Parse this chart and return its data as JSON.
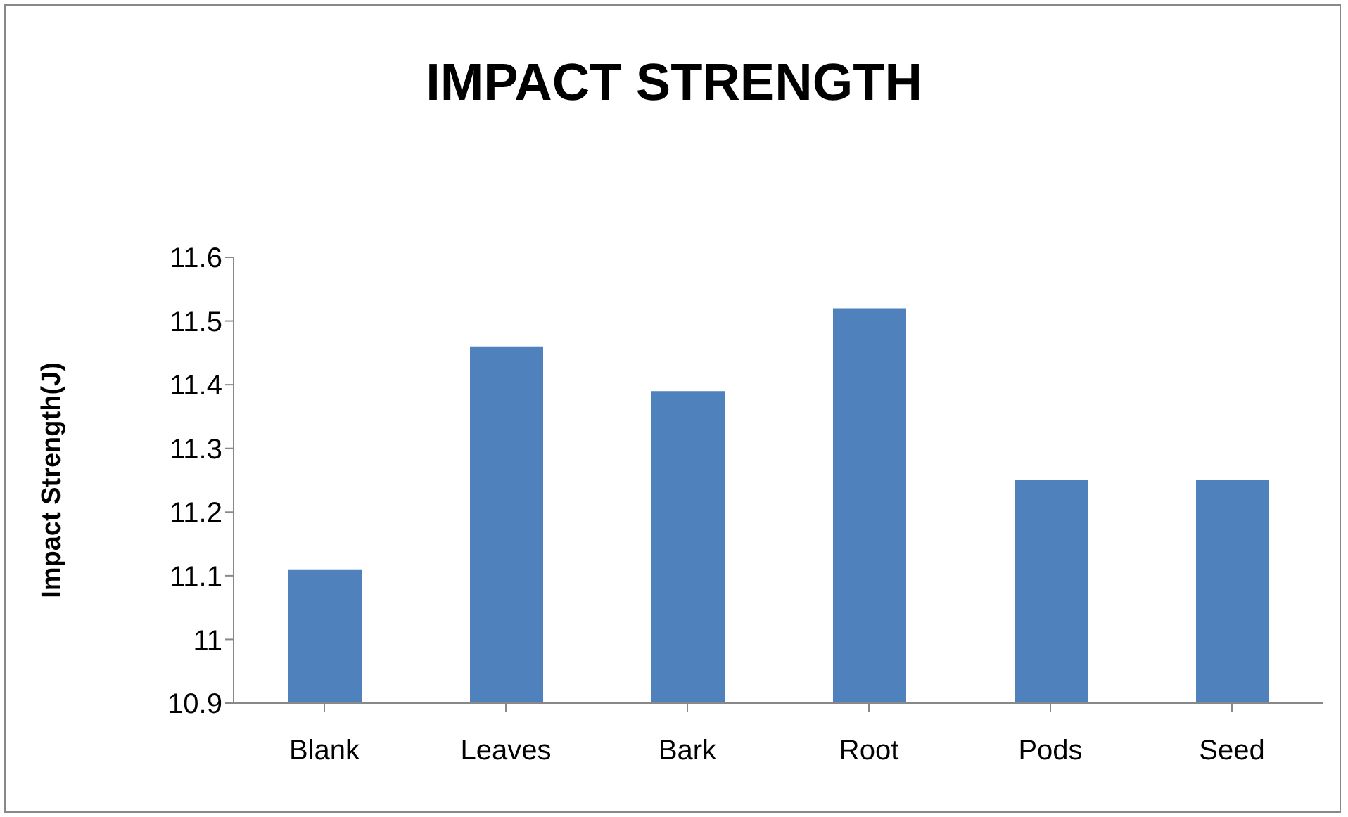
{
  "chart_data": {
    "type": "bar",
    "title": "IMPACT STRENGTH",
    "ylabel": "Impact Strength(J)",
    "categories": [
      "Blank",
      "Leaves",
      "Bark",
      "Root",
      "Pods",
      "Seed"
    ],
    "values": [
      11.11,
      11.46,
      11.39,
      11.52,
      11.25,
      11.25
    ],
    "color": "#4f81bd",
    "ylim": [
      10.9,
      11.6
    ],
    "yticks": [
      10.9,
      11,
      11.1,
      11.2,
      11.3,
      11.4,
      11.5,
      11.6
    ],
    "grid": false,
    "legend": false
  }
}
